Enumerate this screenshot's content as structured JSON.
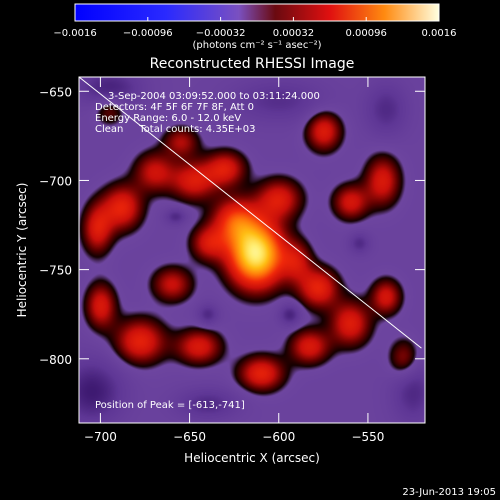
{
  "chart_data": {
    "type": "heatmap",
    "title": "Reconstructed RHESSI Image",
    "xlabel": "Heliocentric X (arcsec)",
    "ylabel": "Heliocentric Y (arcsec)",
    "xlim": [
      -712,
      -518
    ],
    "ylim": [
      -836,
      -642
    ],
    "x_ticks": [
      -700,
      -650,
      -600,
      -550
    ],
    "x_tick_labels": [
      "−700",
      "−650",
      "−600",
      "−550"
    ],
    "y_ticks": [
      -650,
      -700,
      -750,
      -800
    ],
    "y_tick_labels": [
      "−650",
      "−700",
      "−750",
      "−800"
    ],
    "colorbar": {
      "range": [
        -0.0016,
        0.0016
      ],
      "ticks": [
        -0.0016,
        -0.00096,
        -0.00032,
        0.00032,
        0.00096,
        0.0016
      ],
      "tick_labels": [
        "−0.0016",
        "−0.00096",
        "−0.00032",
        "0.00032",
        "0.00096",
        "0.0016"
      ],
      "units": "(photons cm⁻² s⁻¹ asec⁻²)"
    },
    "annotations": [
      "3-Sep-2004 03:09:52.000 to 03:11:24.000",
      "Detectors: 4F 5F 6F 7F 8F, Att 0",
      "Energy Range: 6.0 - 12.0 keV",
      "Clean     Total counts: 4.35E+03"
    ],
    "peak_label": "Position of Peak = [-613,-741]",
    "peak": {
      "x": -613,
      "y": -741
    },
    "limb_line": {
      "x": [
        -712,
        -520
      ],
      "y": [
        -642,
        -794
      ]
    },
    "footer": "23-Jun-2013 19:05",
    "sources": [
      {
        "x": -613,
        "y": -741,
        "sx": 11,
        "sy": 13,
        "amp": 1.0
      },
      {
        "x": -625,
        "y": -722,
        "sx": 9,
        "sy": 9,
        "amp": 0.45
      },
      {
        "x": -648,
        "y": -700,
        "sx": 9,
        "sy": 8,
        "amp": 0.4
      },
      {
        "x": -670,
        "y": -695,
        "sx": 8,
        "sy": 8,
        "amp": 0.35
      },
      {
        "x": -688,
        "y": -715,
        "sx": 8,
        "sy": 9,
        "amp": 0.45
      },
      {
        "x": -702,
        "y": -727,
        "sx": 6,
        "sy": 10,
        "amp": 0.4
      },
      {
        "x": -630,
        "y": -693,
        "sx": 8,
        "sy": 7,
        "amp": 0.4
      },
      {
        "x": -600,
        "y": -710,
        "sx": 9,
        "sy": 8,
        "amp": 0.4
      },
      {
        "x": -575,
        "y": -672,
        "sx": 7,
        "sy": 8,
        "amp": 0.42
      },
      {
        "x": -542,
        "y": -700,
        "sx": 7,
        "sy": 10,
        "amp": 0.4
      },
      {
        "x": -560,
        "y": -712,
        "sx": 7,
        "sy": 7,
        "amp": 0.38
      },
      {
        "x": -578,
        "y": -760,
        "sx": 8,
        "sy": 8,
        "amp": 0.45
      },
      {
        "x": -560,
        "y": -780,
        "sx": 8,
        "sy": 9,
        "amp": 0.42
      },
      {
        "x": -540,
        "y": -765,
        "sx": 6,
        "sy": 7,
        "amp": 0.38
      },
      {
        "x": -583,
        "y": -793,
        "sx": 8,
        "sy": 7,
        "amp": 0.4
      },
      {
        "x": -610,
        "y": -808,
        "sx": 9,
        "sy": 7,
        "amp": 0.45
      },
      {
        "x": -645,
        "y": -793,
        "sx": 9,
        "sy": 7,
        "amp": 0.4
      },
      {
        "x": -678,
        "y": -790,
        "sx": 10,
        "sy": 9,
        "amp": 0.45
      },
      {
        "x": -700,
        "y": -770,
        "sx": 6,
        "sy": 9,
        "amp": 0.4
      },
      {
        "x": -660,
        "y": -758,
        "sx": 8,
        "sy": 7,
        "amp": 0.35
      },
      {
        "x": -640,
        "y": -735,
        "sx": 7,
        "sy": 7,
        "amp": 0.35
      },
      {
        "x": -655,
        "y": -678,
        "sx": 7,
        "sy": 6,
        "amp": 0.3
      },
      {
        "x": -590,
        "y": -745,
        "sx": 6,
        "sy": 8,
        "amp": 0.3
      },
      {
        "x": -530,
        "y": -800,
        "sx": 6,
        "sy": 8,
        "amp": 0.3
      },
      {
        "x": -695,
        "y": -660,
        "sx": 6,
        "sy": 6,
        "amp": 0.25
      }
    ],
    "negative_sources": [
      {
        "x": -695,
        "y": -648,
        "sx": 12,
        "sy": 7,
        "amp": 0.35
      },
      {
        "x": -705,
        "y": -818,
        "sx": 12,
        "sy": 12,
        "amp": 0.4
      },
      {
        "x": -600,
        "y": -655,
        "sx": 18,
        "sy": 8,
        "amp": 0.25
      },
      {
        "x": -540,
        "y": -660,
        "sx": 8,
        "sy": 10,
        "amp": 0.28
      },
      {
        "x": -525,
        "y": -818,
        "sx": 8,
        "sy": 12,
        "amp": 0.3
      },
      {
        "x": -640,
        "y": -825,
        "sx": 12,
        "sy": 6,
        "amp": 0.28
      },
      {
        "x": -594,
        "y": -775,
        "sx": 4,
        "sy": 4,
        "amp": 0.35
      },
      {
        "x": -640,
        "y": -775,
        "sx": 4,
        "sy": 4,
        "amp": 0.3
      },
      {
        "x": -658,
        "y": -720,
        "sx": 4,
        "sy": 3,
        "amp": 0.3
      },
      {
        "x": -555,
        "y": -735,
        "sx": 4,
        "sy": 4,
        "amp": 0.28
      }
    ]
  }
}
